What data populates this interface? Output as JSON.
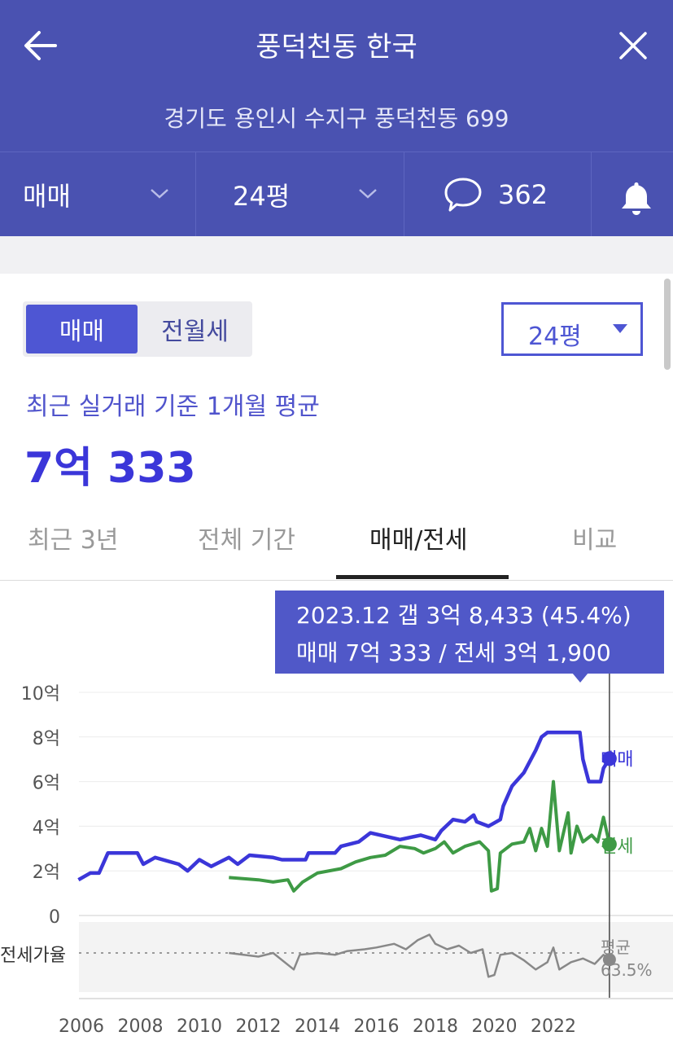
{
  "header": {
    "title": "풍덕천동 한국",
    "address": "경기도 용인시 수지구 풍덕천동 699",
    "trade_type": "매매",
    "size": "24평",
    "comment_count": "362"
  },
  "toggle": {
    "selected": "매매",
    "other": "전월세"
  },
  "size_select": "24평",
  "subtitle": "최근 실거래 기준 1개월 평균",
  "price": "7억 333",
  "tabs": [
    "최근 3년",
    "전체 기간",
    "매매/전세",
    "비교"
  ],
  "tooltip": {
    "line1": "2023.12  갭 3억 8,433 (45.4%)",
    "line2": "매매 7억 333 / 전세 3억 1,900"
  },
  "colors": {
    "header": "#4a52b1",
    "sale": "#3b36d9",
    "jeonse": "#3e9a45",
    "ratio": "#888888",
    "accent": "#4e56d3"
  },
  "chart_data": {
    "type": "line",
    "ylim": [
      0,
      10
    ],
    "y_ticks": [
      "0",
      "2억",
      "4억",
      "6억",
      "8억",
      "10억"
    ],
    "x_ticks": [
      "2006",
      "2008",
      "2010",
      "2012",
      "2014",
      "2016",
      "2018",
      "2020",
      "2022"
    ],
    "series": [
      {
        "name": "매매",
        "points": [
          [
            2005.9,
            1.6
          ],
          [
            2006.3,
            1.9
          ],
          [
            2006.6,
            1.9
          ],
          [
            2006.9,
            2.8
          ],
          [
            2007.9,
            2.8
          ],
          [
            2008.1,
            2.3
          ],
          [
            2008.5,
            2.6
          ],
          [
            2009.3,
            2.3
          ],
          [
            2009.6,
            2.0
          ],
          [
            2010.0,
            2.5
          ],
          [
            2010.4,
            2.2
          ],
          [
            2011.0,
            2.6
          ],
          [
            2011.3,
            2.3
          ],
          [
            2011.7,
            2.7
          ],
          [
            2012.5,
            2.6
          ],
          [
            2012.8,
            2.5
          ],
          [
            2013.6,
            2.5
          ],
          [
            2013.7,
            2.8
          ],
          [
            2014.6,
            2.8
          ],
          [
            2014.8,
            3.1
          ],
          [
            2015.4,
            3.3
          ],
          [
            2015.8,
            3.7
          ],
          [
            2016.8,
            3.4
          ],
          [
            2017.5,
            3.6
          ],
          [
            2018.0,
            3.4
          ],
          [
            2018.2,
            3.8
          ],
          [
            2018.6,
            4.3
          ],
          [
            2019.0,
            4.2
          ],
          [
            2019.3,
            4.5
          ],
          [
            2019.4,
            4.2
          ],
          [
            2019.8,
            4.0
          ],
          [
            2020.2,
            4.3
          ],
          [
            2020.3,
            4.9
          ],
          [
            2020.6,
            5.8
          ],
          [
            2021.0,
            6.4
          ],
          [
            2021.4,
            7.4
          ],
          [
            2021.6,
            8.0
          ],
          [
            2021.8,
            8.2
          ],
          [
            2022.9,
            8.2
          ],
          [
            2023.0,
            7.0
          ],
          [
            2023.2,
            6.0
          ],
          [
            2023.6,
            6.0
          ],
          [
            2023.7,
            6.6
          ],
          [
            2023.9,
            7.03
          ]
        ]
      },
      {
        "name": "전세",
        "points": [
          [
            2011.0,
            1.7
          ],
          [
            2012.0,
            1.6
          ],
          [
            2012.5,
            1.5
          ],
          [
            2013.0,
            1.6
          ],
          [
            2013.2,
            1.1
          ],
          [
            2013.5,
            1.5
          ],
          [
            2014.0,
            1.9
          ],
          [
            2014.8,
            2.1
          ],
          [
            2015.3,
            2.4
          ],
          [
            2015.8,
            2.6
          ],
          [
            2016.3,
            2.7
          ],
          [
            2016.8,
            3.1
          ],
          [
            2017.3,
            3.0
          ],
          [
            2017.6,
            2.8
          ],
          [
            2018.0,
            3.0
          ],
          [
            2018.3,
            3.3
          ],
          [
            2018.6,
            2.8
          ],
          [
            2019.0,
            3.1
          ],
          [
            2019.5,
            3.3
          ],
          [
            2019.8,
            2.9
          ],
          [
            2019.9,
            1.1
          ],
          [
            2020.1,
            1.2
          ],
          [
            2020.2,
            2.8
          ],
          [
            2020.6,
            3.2
          ],
          [
            2021.0,
            3.3
          ],
          [
            2021.2,
            3.9
          ],
          [
            2021.4,
            2.9
          ],
          [
            2021.6,
            3.9
          ],
          [
            2021.8,
            3.1
          ],
          [
            2022.0,
            6.0
          ],
          [
            2022.2,
            2.9
          ],
          [
            2022.5,
            4.6
          ],
          [
            2022.6,
            2.8
          ],
          [
            2022.8,
            4.0
          ],
          [
            2023.0,
            3.3
          ],
          [
            2023.3,
            3.6
          ],
          [
            2023.5,
            3.3
          ],
          [
            2023.7,
            4.4
          ],
          [
            2023.9,
            3.19
          ]
        ]
      },
      {
        "name": "전세가율",
        "label": "평균 63.5%",
        "points": [
          [
            2011.0,
            1.0
          ],
          [
            2011.5,
            0.95
          ],
          [
            2012.0,
            0.9
          ],
          [
            2012.5,
            1.0
          ],
          [
            2013.2,
            0.55
          ],
          [
            2013.4,
            0.95
          ],
          [
            2014.0,
            1.0
          ],
          [
            2014.6,
            0.95
          ],
          [
            2015.0,
            1.05
          ],
          [
            2015.6,
            1.1
          ],
          [
            2016.0,
            1.15
          ],
          [
            2016.6,
            1.25
          ],
          [
            2017.0,
            1.1
          ],
          [
            2017.4,
            1.35
          ],
          [
            2017.8,
            1.5
          ],
          [
            2018.0,
            1.25
          ],
          [
            2018.4,
            1.1
          ],
          [
            2018.8,
            1.2
          ],
          [
            2019.2,
            1.0
          ],
          [
            2019.6,
            1.1
          ],
          [
            2019.8,
            0.35
          ],
          [
            2020.0,
            0.4
          ],
          [
            2020.2,
            0.95
          ],
          [
            2020.6,
            1.0
          ],
          [
            2021.0,
            0.8
          ],
          [
            2021.4,
            0.55
          ],
          [
            2021.8,
            0.75
          ],
          [
            2022.0,
            1.15
          ],
          [
            2022.2,
            0.55
          ],
          [
            2022.6,
            0.75
          ],
          [
            2023.0,
            0.85
          ],
          [
            2023.4,
            0.7
          ],
          [
            2023.7,
            0.95
          ],
          [
            2023.9,
            0.82
          ]
        ]
      }
    ],
    "ratio_label": "전세가율",
    "ratio_avg_label": "평균",
    "ratio_avg_value": "63.5%",
    "cursor_x": 2023.9
  }
}
